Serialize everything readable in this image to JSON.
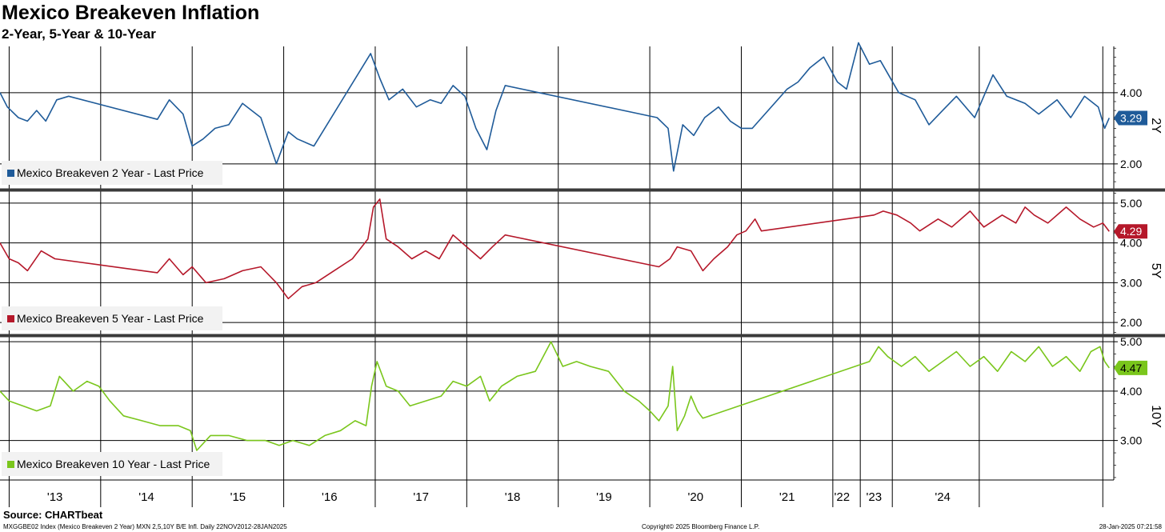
{
  "header": {
    "title": "Mexico Breakeven Inflation",
    "subtitle": "2-Year, 5-Year & 10-Year"
  },
  "footer": {
    "source": "Source: CHARTbeat",
    "ticker_info": "MXGGBE02 Index (Mexico Breakeven 2 Year) MXN 2,5,10Y B/E Infl.  Daily 22NOV2012-28JAN2025",
    "copyright": "Copyright© 2025 Bloomberg Finance L.P.",
    "timestamp": "28-Jan-2025 07:21:58"
  },
  "chart_data": {
    "type": "line",
    "x_range": [
      2012.9,
      2025.07
    ],
    "x_tick_labels": [
      {
        "label": "'13",
        "year": 2013.5
      },
      {
        "label": "'14",
        "year": 2014.5
      },
      {
        "label": "'15",
        "year": 2015.5
      },
      {
        "label": "'16",
        "year": 2016.5
      },
      {
        "label": "'17",
        "year": 2017.5
      },
      {
        "label": "'18",
        "year": 2018.5
      },
      {
        "label": "'19",
        "year": 2019.5
      },
      {
        "label": "'20",
        "year": 2020.5
      },
      {
        "label": "'21",
        "year": 2021.5
      },
      {
        "label": "'22",
        "year": 2022.1
      },
      {
        "label": "'23",
        "year": 2022.45
      },
      {
        "label": "'24",
        "year": 2023.2
      }
    ],
    "vertical_gridlines": [
      2013.0,
      2014.0,
      2015.0,
      2016.0,
      2017.0,
      2018.0,
      2019.0,
      2020.0,
      2021.0,
      2022.0,
      2022.3,
      2022.65,
      2023.6,
      2024.95
    ],
    "grid": true,
    "panels": [
      {
        "axis_label": "2Y",
        "legend": "Mexico Breakeven 2 Year - Last Price",
        "color": "#1f5b99",
        "last_value": "3.29",
        "ylim": [
          1.3,
          5.3
        ],
        "yticks": [
          {
            "value": 2.0,
            "label": "2.00"
          },
          {
            "value": 4.0,
            "label": "4.00"
          }
        ],
        "series": [
          [
            2012.9,
            4.0
          ],
          [
            2012.98,
            3.6
          ],
          [
            2013.1,
            3.3
          ],
          [
            2013.2,
            3.2
          ],
          [
            2013.3,
            3.5
          ],
          [
            2013.4,
            3.2
          ],
          [
            2013.52,
            3.8
          ],
          [
            2013.65,
            3.9
          ],
          [
            2014.62,
            3.25
          ],
          [
            2014.75,
            3.8
          ],
          [
            2014.9,
            3.4
          ],
          [
            2015.0,
            2.5
          ],
          [
            2015.12,
            2.7
          ],
          [
            2015.25,
            3.0
          ],
          [
            2015.4,
            3.1
          ],
          [
            2015.55,
            3.7
          ],
          [
            2015.75,
            3.3
          ],
          [
            2015.92,
            2.0
          ],
          [
            2016.05,
            2.9
          ],
          [
            2016.15,
            2.7
          ],
          [
            2016.33,
            2.5
          ],
          [
            2016.95,
            5.1
          ],
          [
            2017.05,
            4.4
          ],
          [
            2017.15,
            3.8
          ],
          [
            2017.3,
            4.1
          ],
          [
            2017.45,
            3.6
          ],
          [
            2017.6,
            3.8
          ],
          [
            2017.72,
            3.7
          ],
          [
            2017.85,
            4.2
          ],
          [
            2017.98,
            3.9
          ],
          [
            2018.1,
            3.0
          ],
          [
            2018.22,
            2.4
          ],
          [
            2018.32,
            3.5
          ],
          [
            2018.42,
            4.2
          ],
          [
            2020.08,
            3.3
          ],
          [
            2020.2,
            3.0
          ],
          [
            2020.26,
            1.8
          ],
          [
            2020.36,
            3.1
          ],
          [
            2020.48,
            2.8
          ],
          [
            2020.6,
            3.3
          ],
          [
            2020.75,
            3.6
          ],
          [
            2020.88,
            3.2
          ],
          [
            2021.0,
            3.0
          ],
          [
            2021.12,
            3.0
          ],
          [
            2021.5,
            4.1
          ],
          [
            2021.62,
            4.3
          ],
          [
            2021.75,
            4.7
          ],
          [
            2021.9,
            5.0
          ],
          [
            2022.05,
            4.3
          ],
          [
            2022.15,
            4.1
          ],
          [
            2022.28,
            5.4
          ],
          [
            2022.4,
            4.8
          ],
          [
            2022.52,
            4.9
          ],
          [
            2022.72,
            4.0
          ],
          [
            2022.9,
            3.8
          ],
          [
            2023.05,
            3.1
          ],
          [
            2023.2,
            3.5
          ],
          [
            2023.35,
            3.9
          ],
          [
            2023.55,
            3.3
          ],
          [
            2023.75,
            4.5
          ],
          [
            2023.9,
            3.9
          ],
          [
            2024.1,
            3.7
          ],
          [
            2024.25,
            3.4
          ],
          [
            2024.45,
            3.8
          ],
          [
            2024.6,
            3.3
          ],
          [
            2024.75,
            3.9
          ],
          [
            2024.9,
            3.6
          ],
          [
            2024.97,
            3.0
          ],
          [
            2025.02,
            3.29
          ]
        ]
      },
      {
        "axis_label": "5Y",
        "legend": "Mexico Breakeven 5 Year - Last Price",
        "color": "#b5182a",
        "last_value": "4.29",
        "ylim": [
          1.7,
          5.3
        ],
        "yticks": [
          {
            "value": 2.0,
            "label": "2.00"
          },
          {
            "value": 3.0,
            "label": "3.00"
          },
          {
            "value": 4.0,
            "label": "4.00"
          },
          {
            "value": 5.0,
            "label": "5.00"
          }
        ],
        "series": [
          [
            2012.9,
            4.0
          ],
          [
            2013.0,
            3.6
          ],
          [
            2013.1,
            3.5
          ],
          [
            2013.2,
            3.3
          ],
          [
            2013.35,
            3.8
          ],
          [
            2013.5,
            3.6
          ],
          [
            2014.62,
            3.25
          ],
          [
            2014.75,
            3.6
          ],
          [
            2014.9,
            3.2
          ],
          [
            2015.0,
            3.4
          ],
          [
            2015.15,
            3.0
          ],
          [
            2015.35,
            3.1
          ],
          [
            2015.55,
            3.3
          ],
          [
            2015.75,
            3.4
          ],
          [
            2015.92,
            3.0
          ],
          [
            2016.05,
            2.6
          ],
          [
            2016.2,
            2.9
          ],
          [
            2016.35,
            3.0
          ],
          [
            2016.55,
            3.3
          ],
          [
            2016.75,
            3.6
          ],
          [
            2016.92,
            4.1
          ],
          [
            2016.98,
            4.9
          ],
          [
            2017.05,
            5.1
          ],
          [
            2017.12,
            4.1
          ],
          [
            2017.25,
            3.9
          ],
          [
            2017.4,
            3.6
          ],
          [
            2017.55,
            3.8
          ],
          [
            2017.7,
            3.6
          ],
          [
            2017.85,
            4.2
          ],
          [
            2018.0,
            3.9
          ],
          [
            2018.15,
            3.6
          ],
          [
            2018.28,
            3.9
          ],
          [
            2018.42,
            4.2
          ],
          [
            2020.1,
            3.4
          ],
          [
            2020.22,
            3.6
          ],
          [
            2020.3,
            3.9
          ],
          [
            2020.45,
            3.8
          ],
          [
            2020.58,
            3.3
          ],
          [
            2020.7,
            3.6
          ],
          [
            2020.85,
            3.9
          ],
          [
            2020.95,
            4.2
          ],
          [
            2021.05,
            4.3
          ],
          [
            2021.15,
            4.6
          ],
          [
            2021.22,
            4.3
          ],
          [
            2022.45,
            4.7
          ],
          [
            2022.55,
            4.8
          ],
          [
            2022.7,
            4.7
          ],
          [
            2022.85,
            4.5
          ],
          [
            2022.95,
            4.3
          ],
          [
            2023.15,
            4.6
          ],
          [
            2023.3,
            4.4
          ],
          [
            2023.5,
            4.8
          ],
          [
            2023.65,
            4.4
          ],
          [
            2023.85,
            4.7
          ],
          [
            2024.0,
            4.5
          ],
          [
            2024.1,
            4.9
          ],
          [
            2024.2,
            4.7
          ],
          [
            2024.35,
            4.5
          ],
          [
            2024.55,
            4.9
          ],
          [
            2024.7,
            4.6
          ],
          [
            2024.85,
            4.4
          ],
          [
            2024.95,
            4.5
          ],
          [
            2025.02,
            4.29
          ]
        ]
      },
      {
        "axis_label": "10Y",
        "legend": "Mexico Breakeven 10 Year - Last Price",
        "color": "#7ac61c",
        "last_value": "4.47",
        "ylim": [
          2.2,
          5.1
        ],
        "yticks": [
          {
            "value": 3.0,
            "label": "3.00"
          },
          {
            "value": 4.0,
            "label": "4.00"
          },
          {
            "value": 5.0,
            "label": "5.00"
          }
        ],
        "series": [
          [
            2012.9,
            4.0
          ],
          [
            2013.0,
            3.8
          ],
          [
            2013.15,
            3.7
          ],
          [
            2013.3,
            3.6
          ],
          [
            2013.45,
            3.7
          ],
          [
            2013.55,
            4.3
          ],
          [
            2013.7,
            4.0
          ],
          [
            2013.85,
            4.2
          ],
          [
            2013.98,
            4.1
          ],
          [
            2014.1,
            3.8
          ],
          [
            2014.25,
            3.5
          ],
          [
            2014.45,
            3.4
          ],
          [
            2014.65,
            3.3
          ],
          [
            2014.85,
            3.3
          ],
          [
            2014.98,
            3.2
          ],
          [
            2015.05,
            2.8
          ],
          [
            2015.2,
            3.1
          ],
          [
            2015.4,
            3.1
          ],
          [
            2015.6,
            3.0
          ],
          [
            2015.8,
            3.0
          ],
          [
            2015.95,
            2.9
          ],
          [
            2016.1,
            3.0
          ],
          [
            2016.28,
            2.9
          ],
          [
            2016.45,
            3.1
          ],
          [
            2016.62,
            3.2
          ],
          [
            2016.78,
            3.4
          ],
          [
            2016.9,
            3.3
          ],
          [
            2016.96,
            4.1
          ],
          [
            2017.02,
            4.6
          ],
          [
            2017.12,
            4.1
          ],
          [
            2017.25,
            4.0
          ],
          [
            2017.38,
            3.7
          ],
          [
            2017.55,
            3.8
          ],
          [
            2017.72,
            3.9
          ],
          [
            2017.85,
            4.2
          ],
          [
            2018.0,
            4.1
          ],
          [
            2018.15,
            4.3
          ],
          [
            2018.25,
            3.8
          ],
          [
            2018.38,
            4.1
          ],
          [
            2018.55,
            4.3
          ],
          [
            2018.75,
            4.4
          ],
          [
            2018.92,
            5.0
          ],
          [
            2019.05,
            4.5
          ],
          [
            2019.2,
            4.6
          ],
          [
            2019.35,
            4.5
          ],
          [
            2019.55,
            4.4
          ],
          [
            2019.72,
            4.0
          ],
          [
            2019.88,
            3.8
          ],
          [
            2020.0,
            3.6
          ],
          [
            2020.1,
            3.4
          ],
          [
            2020.2,
            3.7
          ],
          [
            2020.25,
            4.5
          ],
          [
            2020.3,
            3.2
          ],
          [
            2020.38,
            3.5
          ],
          [
            2020.45,
            3.9
          ],
          [
            2020.52,
            3.6
          ],
          [
            2020.58,
            3.45
          ],
          [
            2022.4,
            4.6
          ],
          [
            2022.5,
            4.9
          ],
          [
            2022.6,
            4.7
          ],
          [
            2022.75,
            4.5
          ],
          [
            2022.9,
            4.7
          ],
          [
            2023.05,
            4.4
          ],
          [
            2023.2,
            4.6
          ],
          [
            2023.35,
            4.8
          ],
          [
            2023.5,
            4.5
          ],
          [
            2023.65,
            4.7
          ],
          [
            2023.8,
            4.4
          ],
          [
            2023.95,
            4.8
          ],
          [
            2024.1,
            4.6
          ],
          [
            2024.25,
            4.9
          ],
          [
            2024.4,
            4.5
          ],
          [
            2024.55,
            4.7
          ],
          [
            2024.7,
            4.4
          ],
          [
            2024.82,
            4.8
          ],
          [
            2024.92,
            4.9
          ],
          [
            2024.97,
            4.6
          ],
          [
            2025.02,
            4.47
          ]
        ]
      }
    ]
  }
}
